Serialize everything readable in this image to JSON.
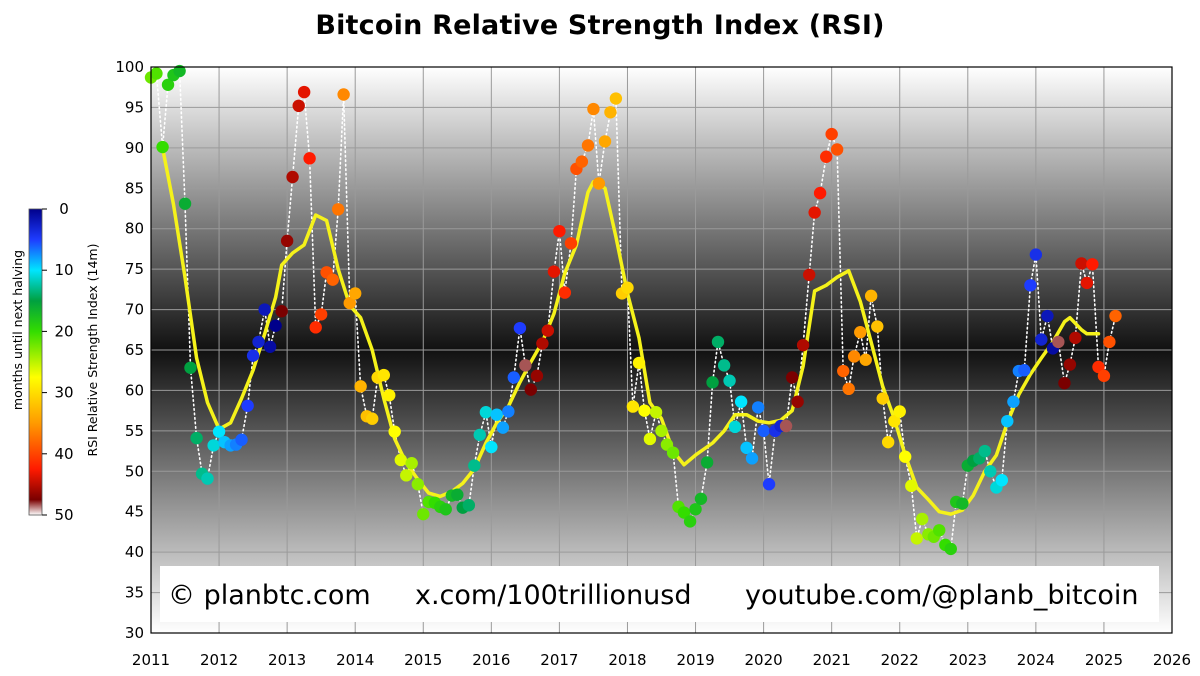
{
  "chart_data": {
    "type": "scatter",
    "title": "Bitcoin Relative Strength Index (RSI)",
    "ylabel": "RSI Relative Strength Index (14m)",
    "xlabel": "",
    "xlim": [
      2011,
      2026
    ],
    "ylim": [
      30,
      100
    ],
    "x_ticks": [
      "2011",
      "2012",
      "2013",
      "2014",
      "2015",
      "2016",
      "2017",
      "2018",
      "2019",
      "2020",
      "2021",
      "2022",
      "2023",
      "2024",
      "2025",
      "2026"
    ],
    "y_ticks": [
      "30",
      "35",
      "40",
      "45",
      "50",
      "55",
      "60",
      "65",
      "70",
      "75",
      "80",
      "85",
      "90",
      "95",
      "100"
    ],
    "grid": true,
    "colorbar": {
      "label": "months until next halving",
      "ticks": [
        "0",
        "10",
        "20",
        "30",
        "40",
        "50"
      ],
      "range": [
        0,
        50
      ]
    },
    "points": [
      {
        "x": 2011.0,
        "y": 98.7,
        "c": 22
      },
      {
        "x": 2011.08,
        "y": 99.2,
        "c": 21
      },
      {
        "x": 2011.17,
        "y": 90.1,
        "c": 20
      },
      {
        "x": 2011.25,
        "y": 97.8,
        "c": 19
      },
      {
        "x": 2011.33,
        "y": 99.0,
        "c": 18
      },
      {
        "x": 2011.42,
        "y": 99.5,
        "c": 17
      },
      {
        "x": 2011.5,
        "y": 83.1,
        "c": 16
      },
      {
        "x": 2011.58,
        "y": 62.8,
        "c": 15
      },
      {
        "x": 2011.67,
        "y": 54.1,
        "c": 14
      },
      {
        "x": 2011.75,
        "y": 49.7,
        "c": 13
      },
      {
        "x": 2011.83,
        "y": 49.1,
        "c": 12
      },
      {
        "x": 2011.92,
        "y": 53.2,
        "c": 11
      },
      {
        "x": 2012.0,
        "y": 54.9,
        "c": 10
      },
      {
        "x": 2012.08,
        "y": 53.6,
        "c": 9
      },
      {
        "x": 2012.17,
        "y": 53.2,
        "c": 8
      },
      {
        "x": 2012.25,
        "y": 53.3,
        "c": 7
      },
      {
        "x": 2012.33,
        "y": 53.9,
        "c": 6
      },
      {
        "x": 2012.42,
        "y": 58.1,
        "c": 5
      },
      {
        "x": 2012.5,
        "y": 64.3,
        "c": 4
      },
      {
        "x": 2012.58,
        "y": 66.0,
        "c": 3
      },
      {
        "x": 2012.67,
        "y": 70.0,
        "c": 2
      },
      {
        "x": 2012.75,
        "y": 65.4,
        "c": 1
      },
      {
        "x": 2012.83,
        "y": 68.0,
        "c": 0
      },
      {
        "x": 2012.92,
        "y": 69.8,
        "c": 47
      },
      {
        "x": 2013.0,
        "y": 78.5,
        "c": 46
      },
      {
        "x": 2013.08,
        "y": 86.4,
        "c": 45
      },
      {
        "x": 2013.17,
        "y": 95.2,
        "c": 44
      },
      {
        "x": 2013.25,
        "y": 96.9,
        "c": 43
      },
      {
        "x": 2013.33,
        "y": 88.7,
        "c": 42
      },
      {
        "x": 2013.42,
        "y": 67.8,
        "c": 41
      },
      {
        "x": 2013.5,
        "y": 69.4,
        "c": 40
      },
      {
        "x": 2013.58,
        "y": 74.6,
        "c": 39
      },
      {
        "x": 2013.67,
        "y": 73.7,
        "c": 38
      },
      {
        "x": 2013.75,
        "y": 82.4,
        "c": 37
      },
      {
        "x": 2013.83,
        "y": 96.6,
        "c": 36
      },
      {
        "x": 2013.92,
        "y": 70.8,
        "c": 35
      },
      {
        "x": 2014.0,
        "y": 72.0,
        "c": 34
      },
      {
        "x": 2014.08,
        "y": 60.5,
        "c": 33
      },
      {
        "x": 2014.17,
        "y": 56.8,
        "c": 32
      },
      {
        "x": 2014.25,
        "y": 56.5,
        "c": 31
      },
      {
        "x": 2014.33,
        "y": 61.6,
        "c": 30
      },
      {
        "x": 2014.42,
        "y": 61.9,
        "c": 29
      },
      {
        "x": 2014.5,
        "y": 59.4,
        "c": 28
      },
      {
        "x": 2014.58,
        "y": 54.9,
        "c": 27
      },
      {
        "x": 2014.67,
        "y": 51.4,
        "c": 26
      },
      {
        "x": 2014.75,
        "y": 49.5,
        "c": 25
      },
      {
        "x": 2014.83,
        "y": 51.0,
        "c": 24
      },
      {
        "x": 2014.92,
        "y": 48.4,
        "c": 23
      },
      {
        "x": 2015.0,
        "y": 44.7,
        "c": 22
      },
      {
        "x": 2015.08,
        "y": 46.2,
        "c": 21
      },
      {
        "x": 2015.17,
        "y": 46.1,
        "c": 20
      },
      {
        "x": 2015.25,
        "y": 45.6,
        "c": 19
      },
      {
        "x": 2015.33,
        "y": 45.3,
        "c": 18
      },
      {
        "x": 2015.42,
        "y": 47.0,
        "c": 17
      },
      {
        "x": 2015.5,
        "y": 47.1,
        "c": 16
      },
      {
        "x": 2015.58,
        "y": 45.5,
        "c": 15
      },
      {
        "x": 2015.67,
        "y": 45.8,
        "c": 14
      },
      {
        "x": 2015.75,
        "y": 50.7,
        "c": 13
      },
      {
        "x": 2015.83,
        "y": 54.5,
        "c": 12
      },
      {
        "x": 2015.92,
        "y": 57.3,
        "c": 11
      },
      {
        "x": 2016.0,
        "y": 53.0,
        "c": 10
      },
      {
        "x": 2016.08,
        "y": 57.0,
        "c": 9
      },
      {
        "x": 2016.17,
        "y": 55.4,
        "c": 8
      },
      {
        "x": 2016.25,
        "y": 57.4,
        "c": 7
      },
      {
        "x": 2016.33,
        "y": 61.6,
        "c": 6
      },
      {
        "x": 2016.42,
        "y": 67.7,
        "c": 5
      },
      {
        "x": 2016.5,
        "y": 63.1,
        "c": 48
      },
      {
        "x": 2016.58,
        "y": 60.1,
        "c": 47
      },
      {
        "x": 2016.67,
        "y": 61.8,
        "c": 46
      },
      {
        "x": 2016.75,
        "y": 65.8,
        "c": 45
      },
      {
        "x": 2016.83,
        "y": 67.4,
        "c": 44
      },
      {
        "x": 2016.92,
        "y": 74.7,
        "c": 43
      },
      {
        "x": 2017.0,
        "y": 79.7,
        "c": 42
      },
      {
        "x": 2017.08,
        "y": 72.1,
        "c": 41
      },
      {
        "x": 2017.17,
        "y": 78.2,
        "c": 40
      },
      {
        "x": 2017.25,
        "y": 87.4,
        "c": 39
      },
      {
        "x": 2017.33,
        "y": 88.3,
        "c": 38
      },
      {
        "x": 2017.42,
        "y": 90.3,
        "c": 37
      },
      {
        "x": 2017.5,
        "y": 94.8,
        "c": 36
      },
      {
        "x": 2017.58,
        "y": 85.6,
        "c": 35
      },
      {
        "x": 2017.67,
        "y": 90.8,
        "c": 34
      },
      {
        "x": 2017.75,
        "y": 94.4,
        "c": 33
      },
      {
        "x": 2017.83,
        "y": 96.1,
        "c": 32
      },
      {
        "x": 2017.92,
        "y": 72.0,
        "c": 31
      },
      {
        "x": 2018.0,
        "y": 72.7,
        "c": 30
      },
      {
        "x": 2018.08,
        "y": 58.0,
        "c": 29
      },
      {
        "x": 2018.17,
        "y": 63.4,
        "c": 28
      },
      {
        "x": 2018.25,
        "y": 57.5,
        "c": 27
      },
      {
        "x": 2018.33,
        "y": 54.0,
        "c": 26
      },
      {
        "x": 2018.42,
        "y": 57.3,
        "c": 25
      },
      {
        "x": 2018.5,
        "y": 55.0,
        "c": 24
      },
      {
        "x": 2018.58,
        "y": 53.3,
        "c": 23
      },
      {
        "x": 2018.67,
        "y": 52.3,
        "c": 22
      },
      {
        "x": 2018.75,
        "y": 45.6,
        "c": 21
      },
      {
        "x": 2018.83,
        "y": 44.9,
        "c": 20
      },
      {
        "x": 2018.92,
        "y": 43.8,
        "c": 19
      },
      {
        "x": 2019.0,
        "y": 45.3,
        "c": 18
      },
      {
        "x": 2019.08,
        "y": 46.6,
        "c": 17
      },
      {
        "x": 2019.17,
        "y": 51.1,
        "c": 16
      },
      {
        "x": 2019.25,
        "y": 61.0,
        "c": 15
      },
      {
        "x": 2019.33,
        "y": 66.0,
        "c": 14
      },
      {
        "x": 2019.42,
        "y": 63.1,
        "c": 13
      },
      {
        "x": 2019.5,
        "y": 61.2,
        "c": 12
      },
      {
        "x": 2019.58,
        "y": 55.5,
        "c": 11
      },
      {
        "x": 2019.67,
        "y": 58.6,
        "c": 10
      },
      {
        "x": 2019.75,
        "y": 52.9,
        "c": 9
      },
      {
        "x": 2019.83,
        "y": 51.6,
        "c": 8
      },
      {
        "x": 2019.92,
        "y": 57.9,
        "c": 7
      },
      {
        "x": 2020.0,
        "y": 55.0,
        "c": 6
      },
      {
        "x": 2020.08,
        "y": 48.4,
        "c": 5
      },
      {
        "x": 2020.17,
        "y": 55.0,
        "c": 4
      },
      {
        "x": 2020.25,
        "y": 55.6,
        "c": 3
      },
      {
        "x": 2020.33,
        "y": 55.6,
        "c": 48
      },
      {
        "x": 2020.42,
        "y": 61.6,
        "c": 47
      },
      {
        "x": 2020.5,
        "y": 58.6,
        "c": 46
      },
      {
        "x": 2020.58,
        "y": 65.6,
        "c": 45
      },
      {
        "x": 2020.67,
        "y": 74.3,
        "c": 44
      },
      {
        "x": 2020.75,
        "y": 82.0,
        "c": 43
      },
      {
        "x": 2020.83,
        "y": 84.4,
        "c": 42
      },
      {
        "x": 2020.92,
        "y": 88.9,
        "c": 41
      },
      {
        "x": 2021.0,
        "y": 91.7,
        "c": 40
      },
      {
        "x": 2021.08,
        "y": 89.8,
        "c": 39
      },
      {
        "x": 2021.17,
        "y": 62.4,
        "c": 38
      },
      {
        "x": 2021.25,
        "y": 60.2,
        "c": 37
      },
      {
        "x": 2021.33,
        "y": 64.2,
        "c": 36
      },
      {
        "x": 2021.42,
        "y": 67.2,
        "c": 35
      },
      {
        "x": 2021.5,
        "y": 63.8,
        "c": 34
      },
      {
        "x": 2021.58,
        "y": 71.7,
        "c": 33
      },
      {
        "x": 2021.67,
        "y": 67.9,
        "c": 32
      },
      {
        "x": 2021.75,
        "y": 59.0,
        "c": 31
      },
      {
        "x": 2021.83,
        "y": 53.6,
        "c": 30
      },
      {
        "x": 2021.92,
        "y": 56.2,
        "c": 29
      },
      {
        "x": 2022.0,
        "y": 57.4,
        "c": 28
      },
      {
        "x": 2022.08,
        "y": 51.8,
        "c": 27
      },
      {
        "x": 2022.17,
        "y": 48.2,
        "c": 26
      },
      {
        "x": 2022.25,
        "y": 41.7,
        "c": 25
      },
      {
        "x": 2022.33,
        "y": 44.1,
        "c": 24
      },
      {
        "x": 2022.42,
        "y": 42.2,
        "c": 23
      },
      {
        "x": 2022.5,
        "y": 41.9,
        "c": 22
      },
      {
        "x": 2022.58,
        "y": 42.7,
        "c": 21
      },
      {
        "x": 2022.67,
        "y": 40.9,
        "c": 20
      },
      {
        "x": 2022.75,
        "y": 40.4,
        "c": 19
      },
      {
        "x": 2022.83,
        "y": 46.2,
        "c": 18
      },
      {
        "x": 2022.92,
        "y": 46.0,
        "c": 17
      },
      {
        "x": 2023.0,
        "y": 50.7,
        "c": 16
      },
      {
        "x": 2023.08,
        "y": 51.3,
        "c": 15
      },
      {
        "x": 2023.17,
        "y": 51.6,
        "c": 14
      },
      {
        "x": 2023.25,
        "y": 52.5,
        "c": 13
      },
      {
        "x": 2023.33,
        "y": 50.0,
        "c": 12
      },
      {
        "x": 2023.42,
        "y": 48.0,
        "c": 11
      },
      {
        "x": 2023.5,
        "y": 48.9,
        "c": 10
      },
      {
        "x": 2023.58,
        "y": 56.2,
        "c": 9
      },
      {
        "x": 2023.67,
        "y": 58.6,
        "c": 8
      },
      {
        "x": 2023.75,
        "y": 62.4,
        "c": 7
      },
      {
        "x": 2023.83,
        "y": 62.5,
        "c": 6
      },
      {
        "x": 2023.92,
        "y": 73.0,
        "c": 5
      },
      {
        "x": 2024.0,
        "y": 76.8,
        "c": 4
      },
      {
        "x": 2024.08,
        "y": 66.3,
        "c": 3
      },
      {
        "x": 2024.17,
        "y": 69.2,
        "c": 2
      },
      {
        "x": 2024.25,
        "y": 65.2,
        "c": 1
      },
      {
        "x": 2024.33,
        "y": 66.0,
        "c": 48
      },
      {
        "x": 2024.42,
        "y": 60.9,
        "c": 47
      },
      {
        "x": 2024.5,
        "y": 63.2,
        "c": 46
      },
      {
        "x": 2024.58,
        "y": 66.5,
        "c": 45
      },
      {
        "x": 2024.67,
        "y": 75.7,
        "c": 44
      },
      {
        "x": 2024.75,
        "y": 73.3,
        "c": 43
      },
      {
        "x": 2024.83,
        "y": 75.6,
        "c": 42
      },
      {
        "x": 2024.92,
        "y": 62.9,
        "c": 41
      },
      {
        "x": 2025.0,
        "y": 61.8,
        "c": 40
      },
      {
        "x": 2025.08,
        "y": 66.0,
        "c": 39
      },
      {
        "x": 2025.17,
        "y": 69.2,
        "c": 38
      }
    ],
    "moving_average": {
      "color": "#f5f21a",
      "points": [
        [
          2011.17,
          90.0
        ],
        [
          2011.33,
          83.0
        ],
        [
          2011.5,
          74.0
        ],
        [
          2011.67,
          64.0
        ],
        [
          2011.83,
          58.5
        ],
        [
          2012.0,
          55.2
        ],
        [
          2012.17,
          56.0
        ],
        [
          2012.33,
          59.0
        ],
        [
          2012.5,
          62.5
        ],
        [
          2012.67,
          67.0
        ],
        [
          2012.83,
          71.5
        ],
        [
          2012.92,
          75.5
        ],
        [
          2013.08,
          77.0
        ],
        [
          2013.25,
          78.0
        ],
        [
          2013.42,
          81.7
        ],
        [
          2013.58,
          81.0
        ],
        [
          2013.75,
          75.0
        ],
        [
          2013.92,
          70.5
        ],
        [
          2014.08,
          69.0
        ],
        [
          2014.25,
          65.0
        ],
        [
          2014.42,
          59.0
        ],
        [
          2014.58,
          54.0
        ],
        [
          2014.75,
          51.0
        ],
        [
          2014.92,
          49.0
        ],
        [
          2015.08,
          47.3
        ],
        [
          2015.25,
          46.9
        ],
        [
          2015.42,
          47.5
        ],
        [
          2015.58,
          48.5
        ],
        [
          2015.75,
          50.3
        ],
        [
          2015.92,
          53.5
        ],
        [
          2016.08,
          56.0
        ],
        [
          2016.25,
          58.0
        ],
        [
          2016.42,
          61.0
        ],
        [
          2016.58,
          63.5
        ],
        [
          2016.75,
          66.0
        ],
        [
          2016.92,
          69.5
        ],
        [
          2017.08,
          74.5
        ],
        [
          2017.25,
          78.0
        ],
        [
          2017.42,
          84.5
        ],
        [
          2017.5,
          85.8
        ],
        [
          2017.67,
          85.0
        ],
        [
          2017.83,
          79.0
        ],
        [
          2018.0,
          72.0
        ],
        [
          2018.17,
          66.5
        ],
        [
          2018.33,
          58.5
        ],
        [
          2018.5,
          56.5
        ],
        [
          2018.67,
          52.5
        ],
        [
          2018.83,
          50.8
        ],
        [
          2019.0,
          52.0
        ],
        [
          2019.25,
          53.5
        ],
        [
          2019.42,
          55.0
        ],
        [
          2019.58,
          57.0
        ],
        [
          2019.75,
          57.0
        ],
        [
          2019.92,
          56.2
        ],
        [
          2020.08,
          56.0
        ],
        [
          2020.25,
          56.3
        ],
        [
          2020.42,
          57.5
        ],
        [
          2020.58,
          63.0
        ],
        [
          2020.75,
          72.3
        ],
        [
          2020.92,
          73.0
        ],
        [
          2021.08,
          74.0
        ],
        [
          2021.25,
          74.8
        ],
        [
          2021.42,
          71.0
        ],
        [
          2021.58,
          66.0
        ],
        [
          2021.75,
          60.5
        ],
        [
          2021.92,
          56.5
        ],
        [
          2022.08,
          52.0
        ],
        [
          2022.25,
          48.0
        ],
        [
          2022.42,
          46.5
        ],
        [
          2022.58,
          45.0
        ],
        [
          2022.75,
          44.7
        ],
        [
          2022.92,
          45.2
        ],
        [
          2023.08,
          47.0
        ],
        [
          2023.25,
          50.0
        ],
        [
          2023.42,
          52.0
        ],
        [
          2023.58,
          56.0
        ],
        [
          2023.75,
          59.5
        ],
        [
          2023.92,
          62.0
        ],
        [
          2024.08,
          64.0
        ],
        [
          2024.25,
          66.0
        ],
        [
          2024.42,
          68.5
        ],
        [
          2024.5,
          69.0
        ],
        [
          2024.67,
          67.5
        ],
        [
          2024.75,
          67.0
        ],
        [
          2024.83,
          67.0
        ],
        [
          2024.92,
          67.0
        ]
      ]
    },
    "credits": [
      "© planbtc.com",
      "x.com/100trillionusd",
      "youtube.com/@planb_bitcoin"
    ]
  }
}
